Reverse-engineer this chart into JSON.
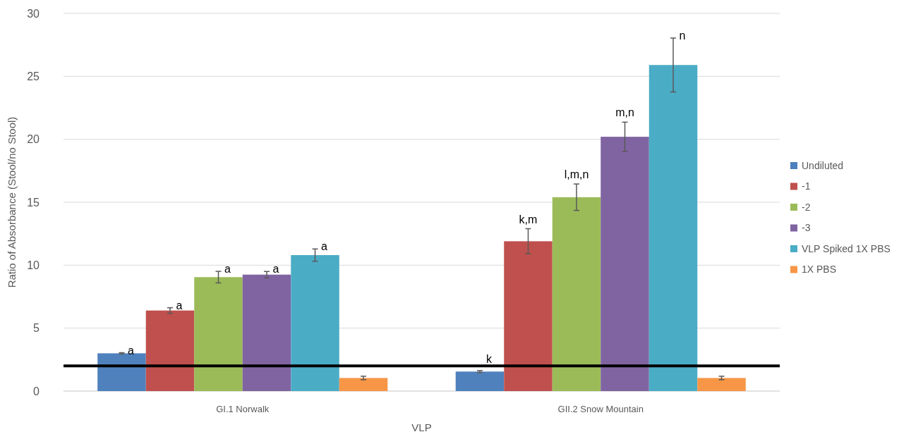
{
  "chart_data": {
    "type": "bar",
    "xlabel": "VLP",
    "ylabel": "Ratio of Absorbance (Stool/no Stool)",
    "categories": [
      "GI.1 Norwalk",
      "GII.2 Snow Mountain"
    ],
    "series": [
      {
        "name": "Undiluted",
        "color": "#4f81bd",
        "values": [
          3.0,
          1.55
        ],
        "errors": [
          0.05,
          0.08
        ],
        "value_labels": [
          "a",
          "k"
        ]
      },
      {
        "name": "-1",
        "color": "#c0504d",
        "values": [
          6.4,
          11.9
        ],
        "errors": [
          0.22,
          1.0
        ],
        "value_labels": [
          "a",
          "k,m"
        ]
      },
      {
        "name": "-2",
        "color": "#9bbb59",
        "values": [
          9.05,
          15.4
        ],
        "errors": [
          0.46,
          1.05
        ],
        "value_labels": [
          "a",
          "l,m,n"
        ]
      },
      {
        "name": "-3",
        "color": "#8064a2",
        "values": [
          9.25,
          20.2
        ],
        "errors": [
          0.25,
          1.16
        ],
        "value_labels": [
          "a",
          "m,n"
        ]
      },
      {
        "name": "VLP Spiked 1X PBS",
        "color": "#4bacc6",
        "values": [
          10.8,
          25.9
        ],
        "errors": [
          0.49,
          2.14
        ],
        "value_labels": [
          "a",
          "n"
        ]
      },
      {
        "name": "1X PBS",
        "color": "#f79646",
        "values": [
          1.04,
          1.04
        ],
        "errors": [
          0.14,
          0.14
        ],
        "value_labels": [
          null,
          null
        ]
      }
    ],
    "ylim": [
      0,
      30
    ],
    "yticks": [
      0,
      5,
      10,
      15,
      20,
      25,
      30
    ],
    "grid": "y",
    "legend": "right",
    "ref_lines": [
      {
        "axis": "y",
        "value": 2,
        "color": "#000000"
      }
    ]
  }
}
